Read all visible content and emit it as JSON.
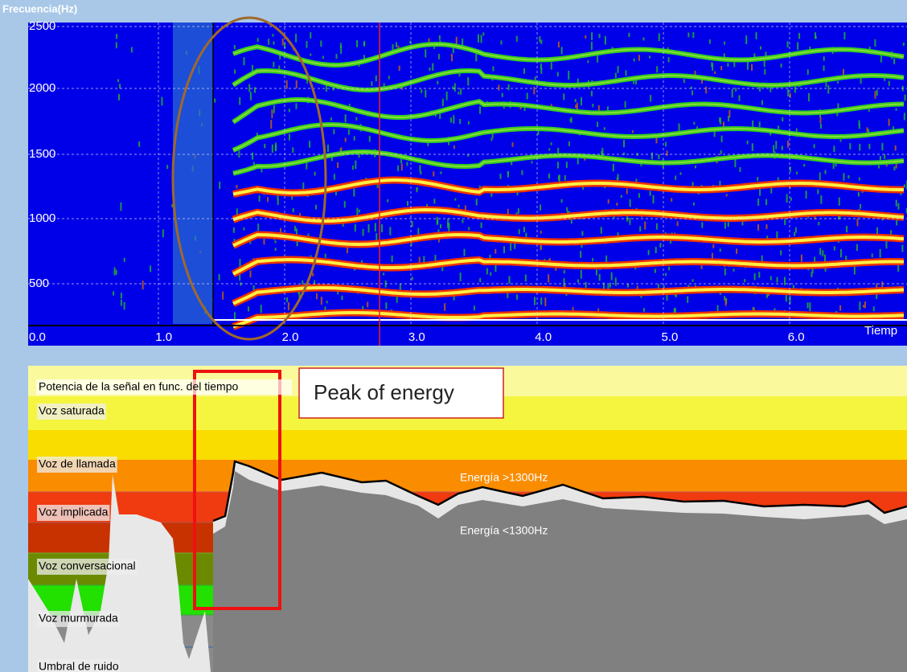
{
  "title": "Frecuencia(Hz)",
  "frequency_ticks": [
    "2500",
    "2000",
    "1500",
    "1000",
    "500"
  ],
  "time_ticks": [
    "0.0",
    "1.0",
    "2.0",
    "3.0",
    "4.0",
    "5.0",
    "6.0"
  ],
  "time_axis_label": "Tiemp",
  "energy_panel": {
    "title": "Potencia de la señal en func. del tiempo",
    "levels": [
      "Voz saturada",
      "Voz de llamada",
      "Voz implicada",
      "Voz conversacional",
      "Voz murmurada",
      "Umbral de ruido"
    ],
    "high_band_label": "Energía >1300Hz",
    "low_band_label": "Energía <1300Hz"
  },
  "annotation": "Peak of energy"
}
